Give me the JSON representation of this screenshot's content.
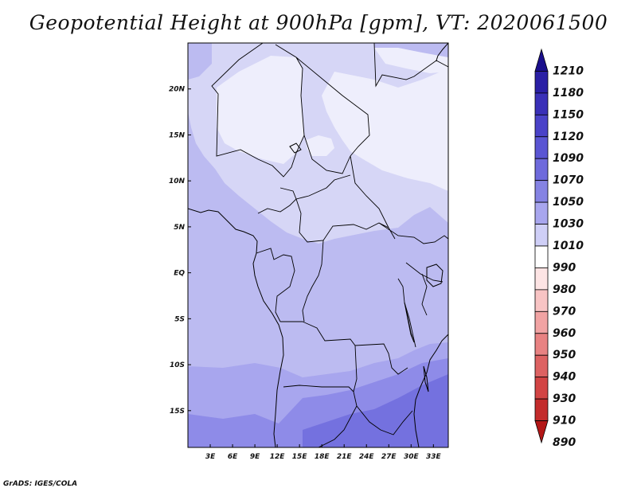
{
  "title": "Geopotential Height at 900hPa [gpm], VT: 2020061500",
  "credit": "GrADS: IGES/COLA",
  "chart_data": {
    "type": "heatmap",
    "variable": "Geopotential Height",
    "level": "900hPa",
    "units": "gpm",
    "valid_time": "2020061500",
    "lon_range": [
      0,
      35
    ],
    "lat_range": [
      -19,
      25
    ],
    "x_ticks": [
      "3E",
      "6E",
      "9E",
      "12E",
      "15E",
      "18E",
      "21E",
      "24E",
      "27E",
      "30E",
      "33E"
    ],
    "y_ticks": [
      "20N",
      "15N",
      "10N",
      "5N",
      "EQ",
      "5S",
      "10S",
      "15S"
    ],
    "colorbar": {
      "levels": [
        "1210",
        "1180",
        "1150",
        "1120",
        "1090",
        "1070",
        "1050",
        "1030",
        "1010",
        "990",
        "980",
        "970",
        "960",
        "950",
        "940",
        "930",
        "910",
        "890"
      ],
      "colors": [
        "#1a0f8c",
        "#2a1fa5",
        "#3a30b8",
        "#4a42c8",
        "#5a55d3",
        "#6e6adc",
        "#8583e3",
        "#a8a6ee",
        "#cfcff7",
        "#ffffff",
        "#fde4e4",
        "#f8c4c4",
        "#f1a3a3",
        "#e88282",
        "#dd6262",
        "#d24444",
        "#c32b2b",
        "#b31616"
      ]
    },
    "field_colors": {
      "c1010": "#eeeefc",
      "c1030": "#d6d6f6",
      "c1050": "#bcbbf1",
      "c1070": "#a8a6ee",
      "c1090": "#8e8be8",
      "c1120": "#7471df"
    }
  }
}
